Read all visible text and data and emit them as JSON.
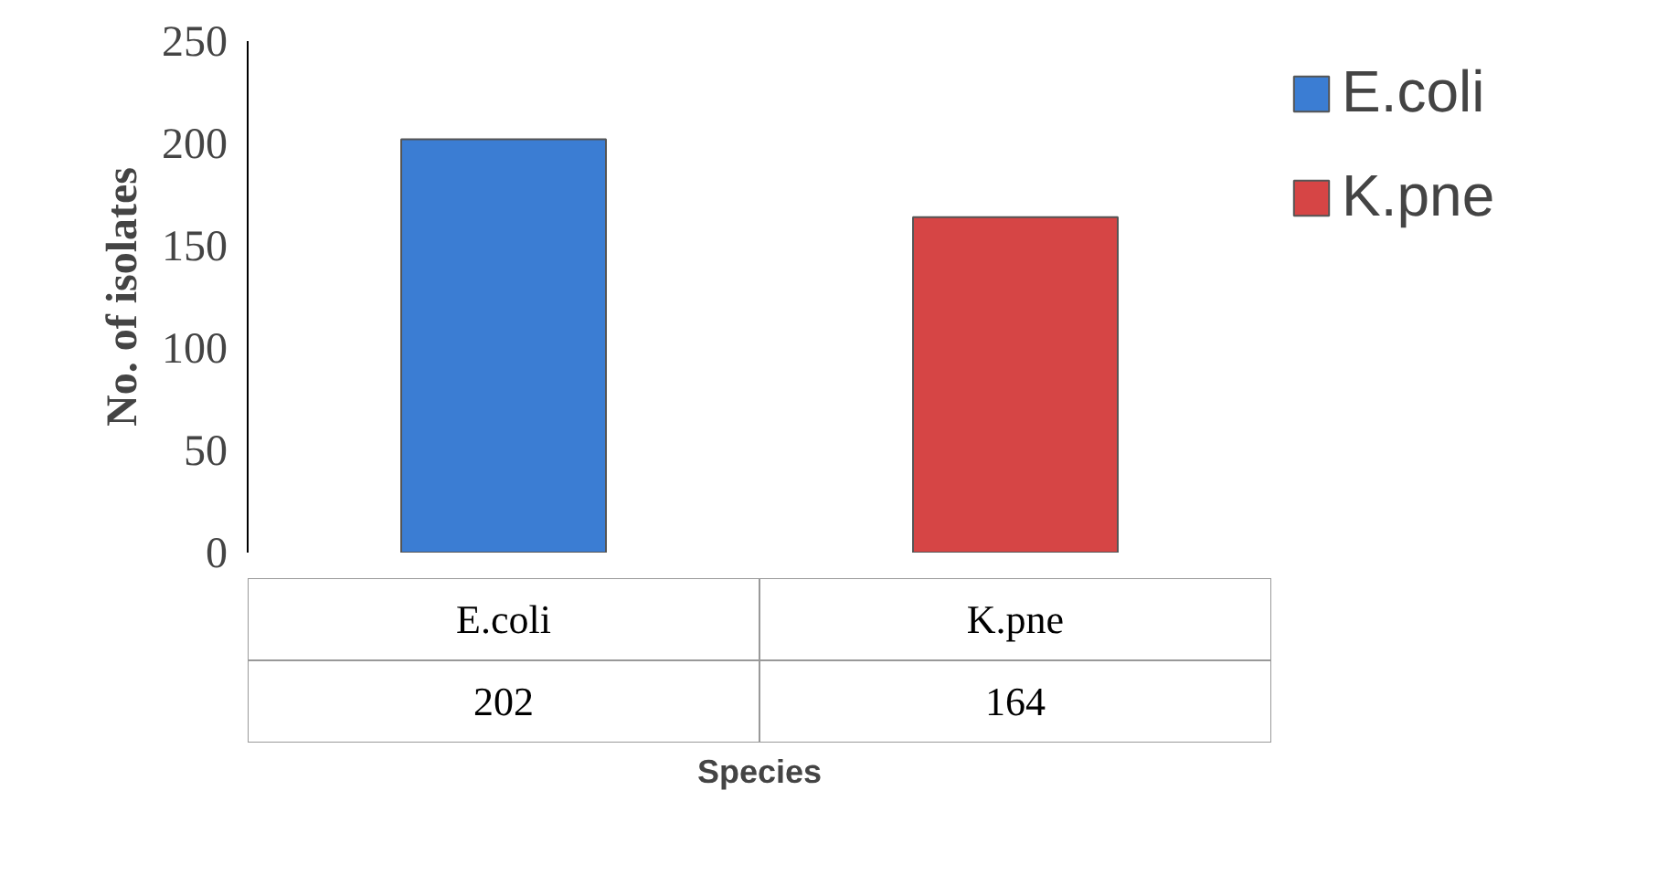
{
  "chart_data": {
    "type": "bar",
    "categories": [
      "E.coli",
      "K.pne"
    ],
    "series": [
      {
        "name": "E.coli",
        "color": "#3b7dd3",
        "values": [
          202,
          null
        ]
      },
      {
        "name": "K.pne",
        "color": "#d64545",
        "values": [
          null,
          164
        ]
      }
    ],
    "ylabel": "No. of isolates",
    "xlabel": "Species",
    "ylim": [
      0,
      250
    ],
    "yticks": [
      0,
      50,
      100,
      150,
      200,
      250
    ],
    "grid": false,
    "legend": "right",
    "data_labels": true
  }
}
